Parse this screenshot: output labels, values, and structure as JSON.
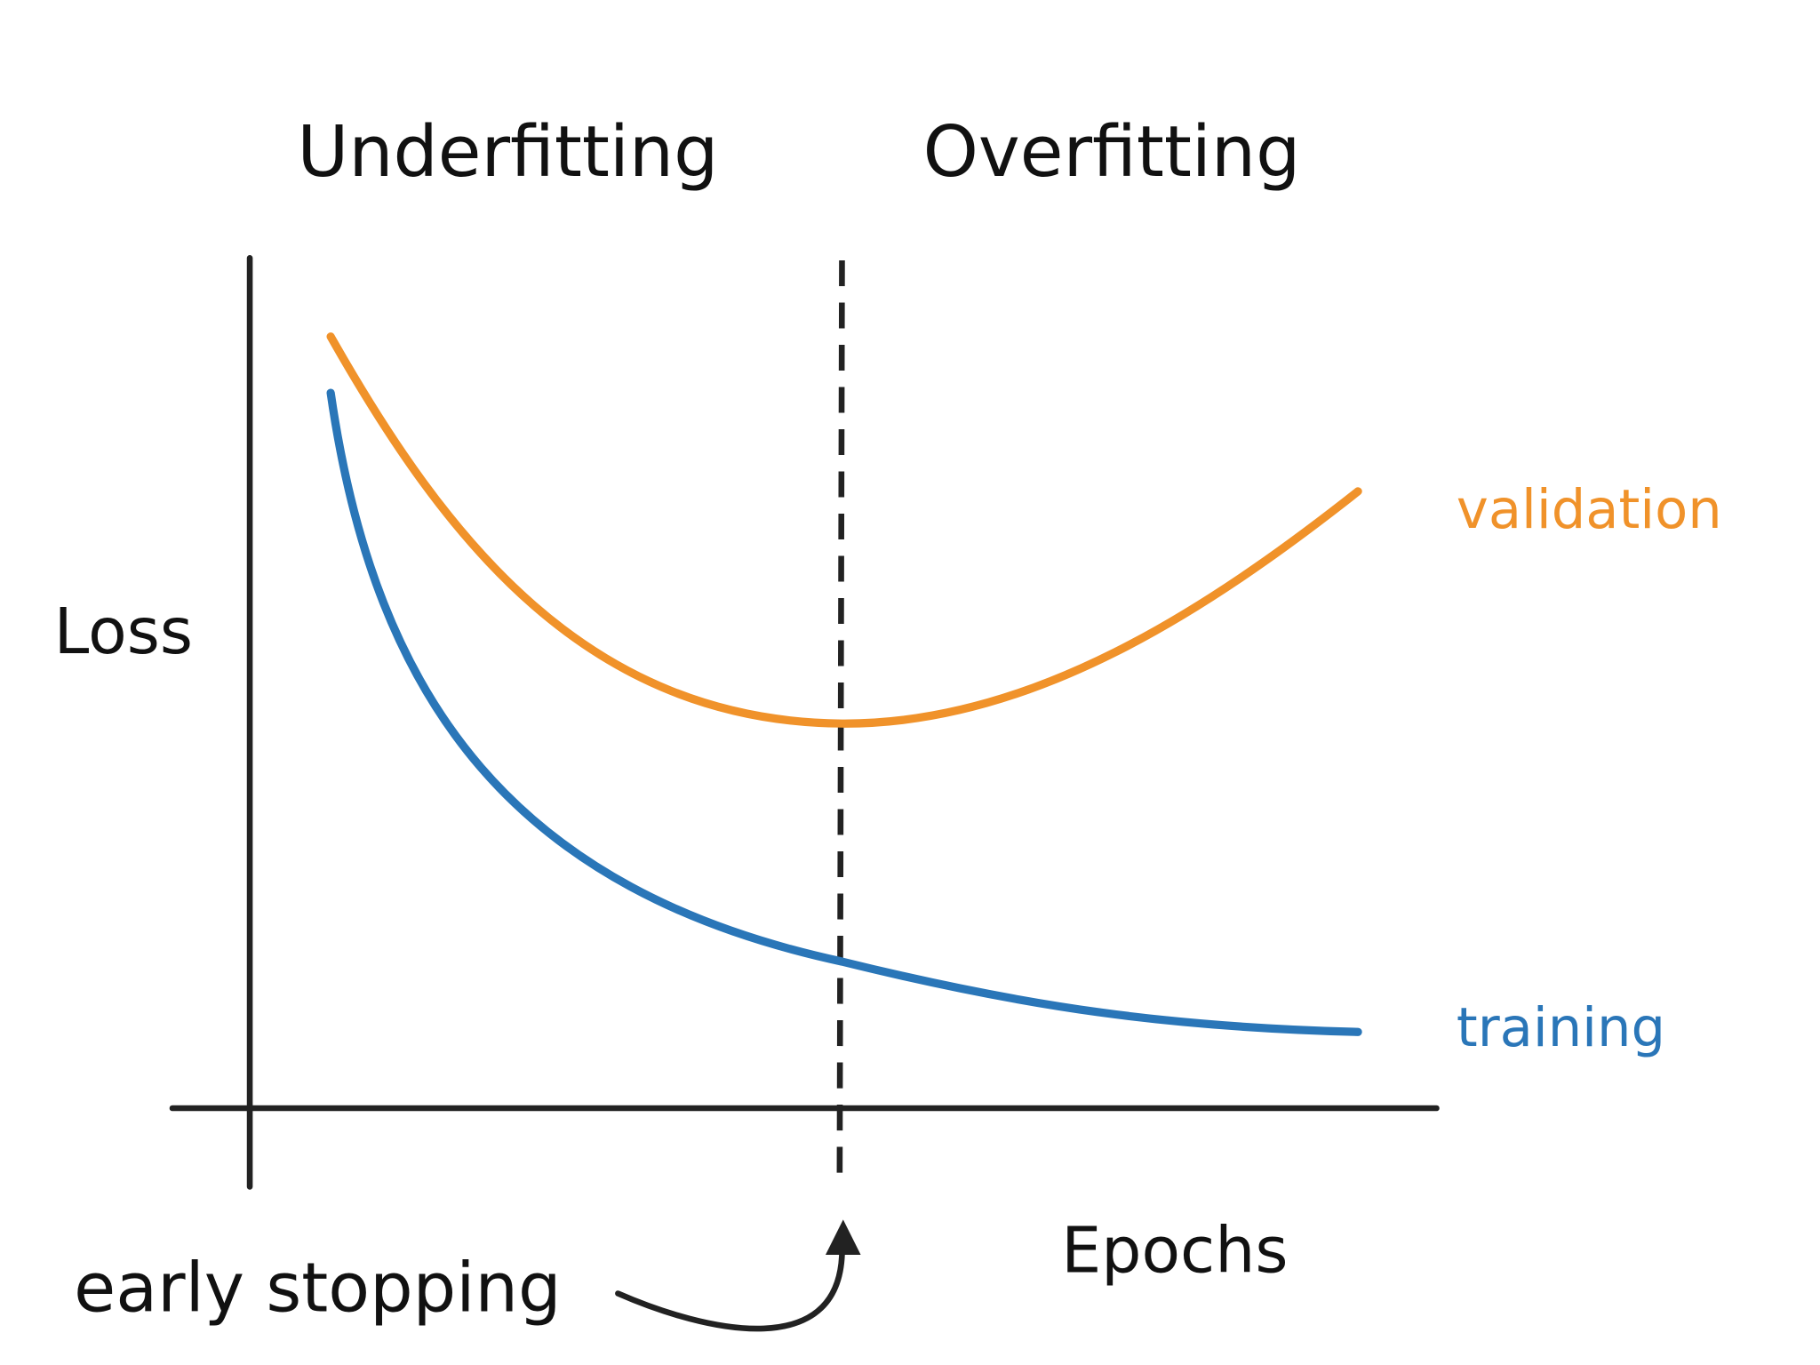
{
  "regions": {
    "left": "Underfitting",
    "right": "Overfitting"
  },
  "axes": {
    "y_label": "Loss",
    "x_label": "Epochs"
  },
  "curves": [
    {
      "label": "validation"
    },
    {
      "label": "training"
    }
  ],
  "annotation": "early stopping"
}
